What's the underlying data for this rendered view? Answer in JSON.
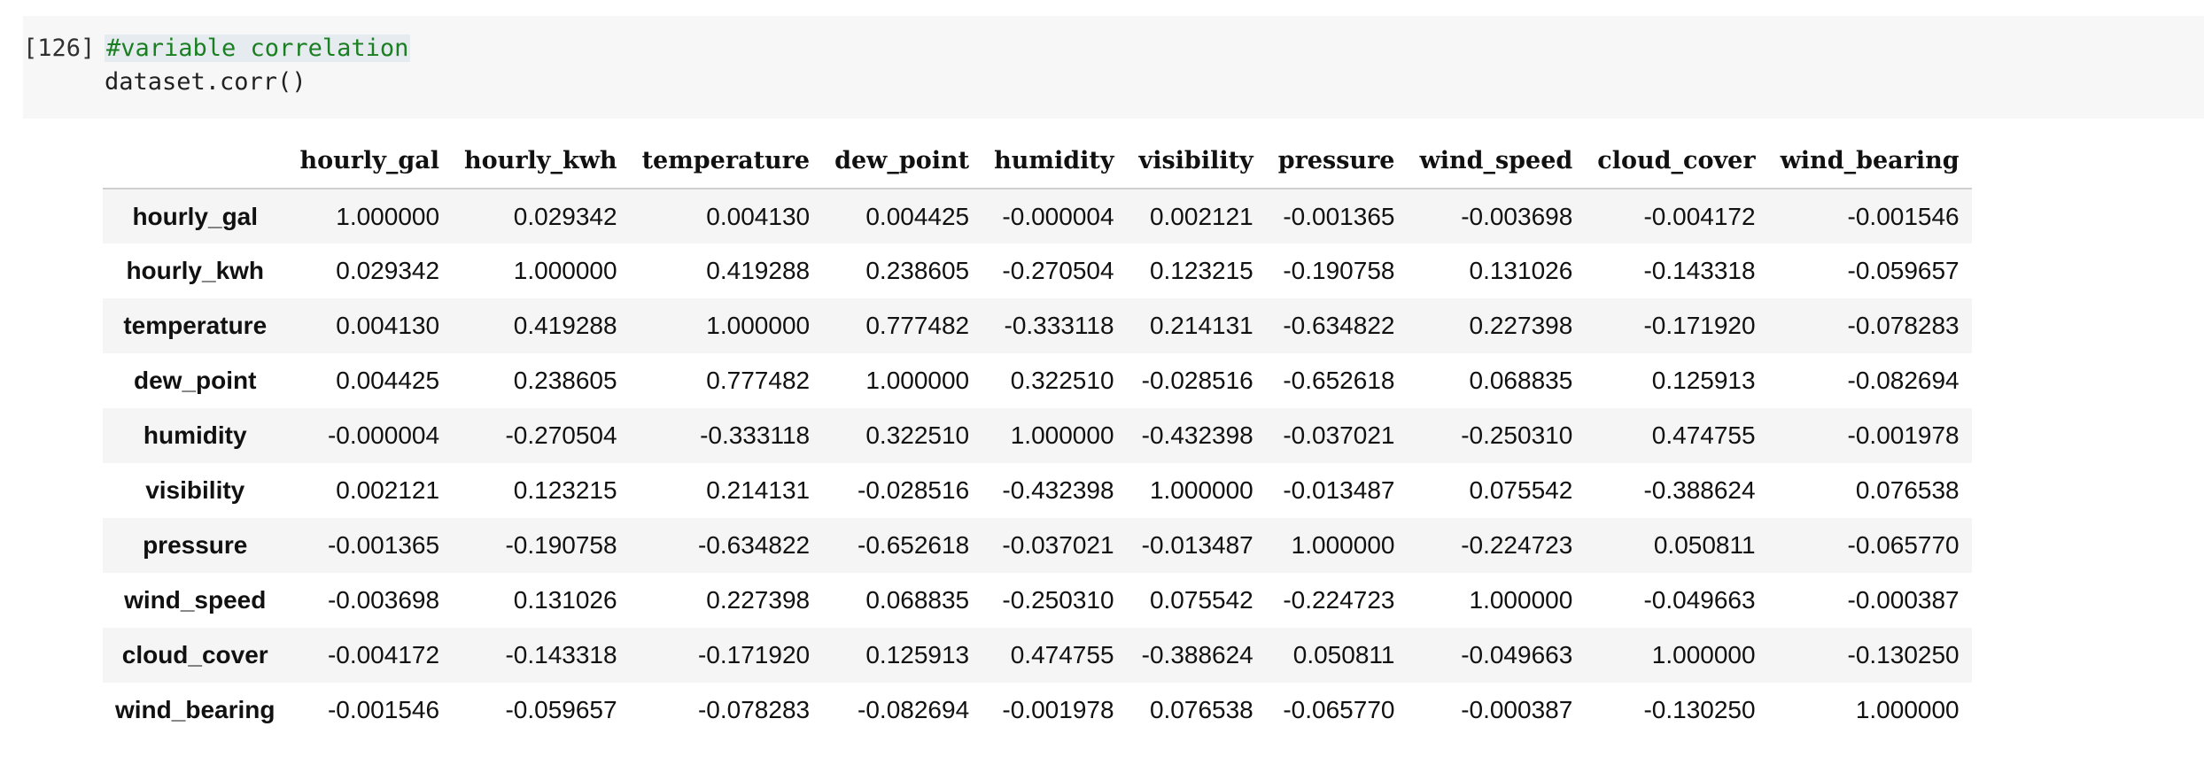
{
  "cell": {
    "execution_count": "[126]",
    "code": [
      "#variable correlation",
      "dataset.corr()"
    ]
  },
  "table": {
    "columns": [
      "hourly_gal",
      "hourly_kwh",
      "temperature",
      "dew_point",
      "humidity",
      "visibility",
      "pressure",
      "wind_speed",
      "cloud_cover",
      "wind_bearing"
    ],
    "rows": [
      {
        "label": "hourly_gal",
        "values": [
          "1.000000",
          "0.029342",
          "0.004130",
          "0.004425",
          "-0.000004",
          "0.002121",
          "-0.001365",
          "-0.003698",
          "-0.004172",
          "-0.001546"
        ]
      },
      {
        "label": "hourly_kwh",
        "values": [
          "0.029342",
          "1.000000",
          "0.419288",
          "0.238605",
          "-0.270504",
          "0.123215",
          "-0.190758",
          "0.131026",
          "-0.143318",
          "-0.059657"
        ]
      },
      {
        "label": "temperature",
        "values": [
          "0.004130",
          "0.419288",
          "1.000000",
          "0.777482",
          "-0.333118",
          "0.214131",
          "-0.634822",
          "0.227398",
          "-0.171920",
          "-0.078283"
        ]
      },
      {
        "label": "dew_point",
        "values": [
          "0.004425",
          "0.238605",
          "0.777482",
          "1.000000",
          "0.322510",
          "-0.028516",
          "-0.652618",
          "0.068835",
          "0.125913",
          "-0.082694"
        ]
      },
      {
        "label": "humidity",
        "values": [
          "-0.000004",
          "-0.270504",
          "-0.333118",
          "0.322510",
          "1.000000",
          "-0.432398",
          "-0.037021",
          "-0.250310",
          "0.474755",
          "-0.001978"
        ]
      },
      {
        "label": "visibility",
        "values": [
          "0.002121",
          "0.123215",
          "0.214131",
          "-0.028516",
          "-0.432398",
          "1.000000",
          "-0.013487",
          "0.075542",
          "-0.388624",
          "0.076538"
        ]
      },
      {
        "label": "pressure",
        "values": [
          "-0.001365",
          "-0.190758",
          "-0.634822",
          "-0.652618",
          "-0.037021",
          "-0.013487",
          "1.000000",
          "-0.224723",
          "0.050811",
          "-0.065770"
        ]
      },
      {
        "label": "wind_speed",
        "values": [
          "-0.003698",
          "0.131026",
          "0.227398",
          "0.068835",
          "-0.250310",
          "0.075542",
          "-0.224723",
          "1.000000",
          "-0.049663",
          "-0.000387"
        ]
      },
      {
        "label": "cloud_cover",
        "values": [
          "-0.004172",
          "-0.143318",
          "-0.171920",
          "0.125913",
          "0.474755",
          "-0.388624",
          "0.050811",
          "-0.049663",
          "1.000000",
          "-0.130250"
        ]
      },
      {
        "label": "wind_bearing",
        "values": [
          "-0.001546",
          "-0.059657",
          "-0.078283",
          "-0.082694",
          "-0.001978",
          "0.076538",
          "-0.065770",
          "-0.000387",
          "-0.130250",
          "1.000000"
        ]
      }
    ]
  }
}
